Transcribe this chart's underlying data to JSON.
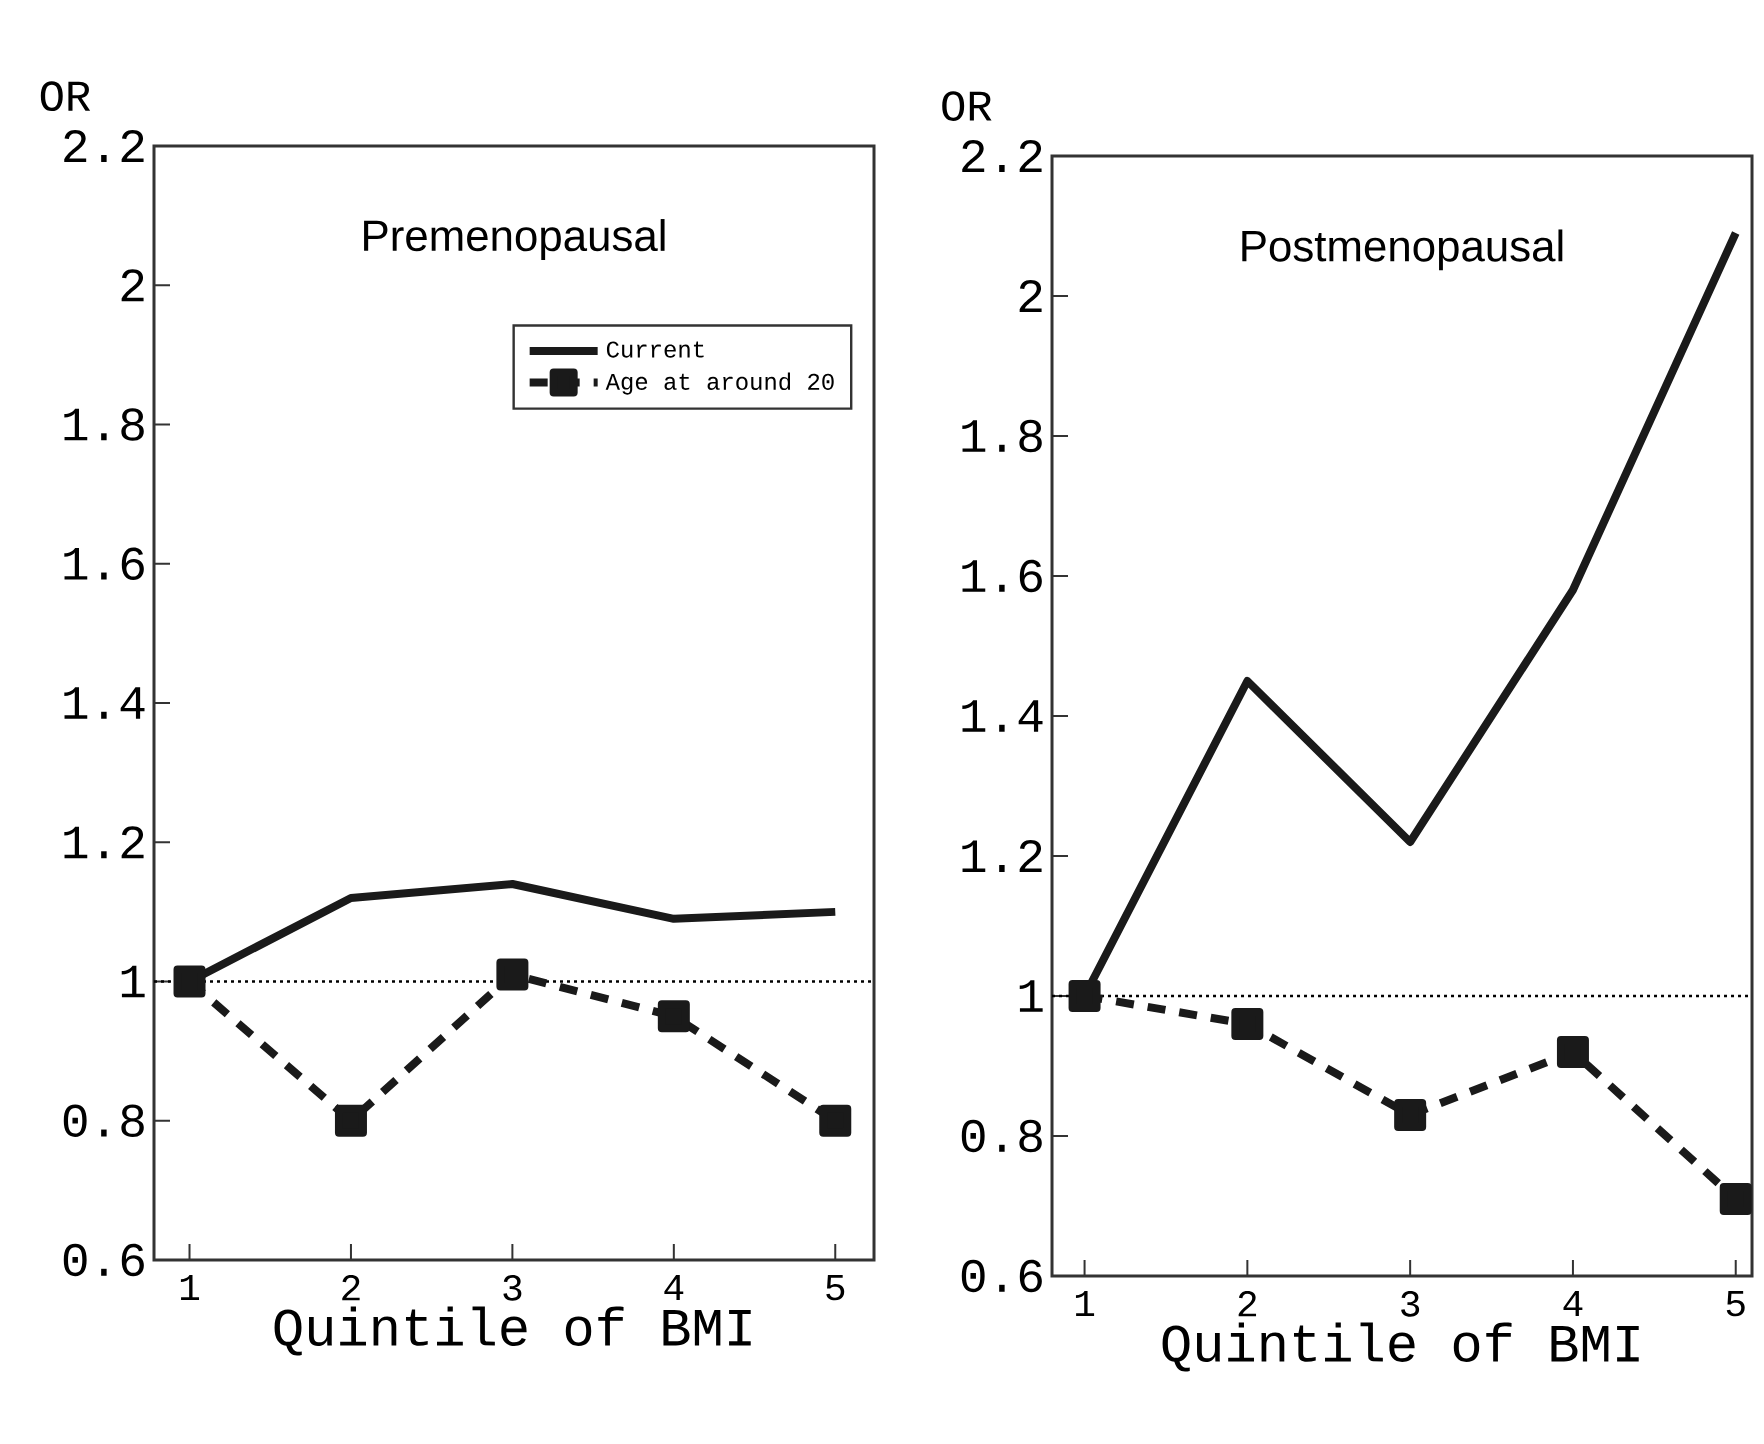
{
  "chart_data": [
    {
      "type": "line",
      "title": "Premenopausal",
      "xlabel": "Quintile of BMI",
      "ylabel": "OR",
      "x": [
        1,
        2,
        3,
        4,
        5
      ],
      "xlim": [
        0.78,
        5.24
      ],
      "xticks": [
        1,
        2,
        3,
        4,
        5
      ],
      "ylim": [
        0.6,
        2.2
      ],
      "yticks": [
        0.6,
        0.8,
        1,
        1.2,
        1.4,
        1.6,
        1.8,
        2,
        2.2
      ],
      "legend": "top right",
      "ref_lines": [
        {
          "axis": "y",
          "value": 1,
          "line_style": "dotted",
          "color": "#000000"
        }
      ],
      "series": [
        {
          "name": "Current",
          "color": "#1a1a1a",
          "values": [
            1,
            1.12,
            1.14,
            1.09,
            1.1
          ],
          "marker": "none",
          "line_style": "solid"
        },
        {
          "name": "Age at around 20",
          "color": "#1a1a1a",
          "values": [
            1,
            0.8,
            1.01,
            0.95,
            0.8
          ],
          "marker": "square",
          "line_style": "dashed"
        }
      ]
    },
    {
      "type": "line",
      "title": "Postmenopausal",
      "xlabel": "Quintile of BMI",
      "ylabel": "OR",
      "x": [
        1,
        2,
        3,
        4,
        5
      ],
      "xlim": [
        0.8,
        5.1
      ],
      "xticks": [
        1,
        2,
        3,
        4,
        5
      ],
      "ylim": [
        0.6,
        2.2
      ],
      "yticks": [
        0.6,
        0.8,
        1,
        1.2,
        1.4,
        1.6,
        1.8,
        2,
        2.2
      ],
      "ref_lines": [
        {
          "axis": "y",
          "value": 1,
          "line_style": "dotted",
          "color": "#000000"
        }
      ],
      "series": [
        {
          "color": "#1a1a1a",
          "values": [
            1,
            1.45,
            1.22,
            1.58,
            2.09
          ],
          "marker": "none",
          "line_style": "solid"
        },
        {
          "color": "#1a1a1a",
          "values": [
            1,
            0.96,
            0.83,
            0.92,
            0.71
          ],
          "marker": "square",
          "line_style": "dashed"
        }
      ]
    }
  ]
}
